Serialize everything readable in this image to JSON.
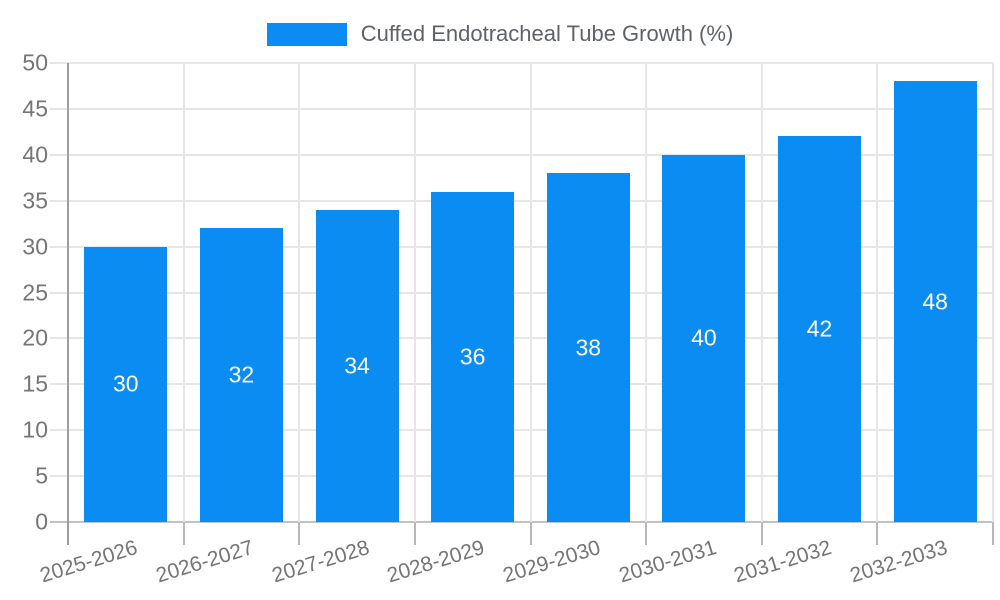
{
  "colors": {
    "background": "#ffffff",
    "bar": "#0a8cf2",
    "bar_label": "#ffffff",
    "grid": "#e6e6e6",
    "grid_zero": "#c2c2c2",
    "axis": "#9e9e9e",
    "tick": "#b8b8b8",
    "axis_label": "#757575",
    "legend_text": "#5f6368"
  },
  "legend": {
    "label": "Cuffed Endotracheal Tube Growth (%)",
    "position": "top-center",
    "swatch_color": "#0a8cf2"
  },
  "chart_data": {
    "type": "bar",
    "title": "Cuffed Endotracheal Tube Growth (%)",
    "xlabel": "",
    "ylabel": "",
    "categories": [
      "2025-2026",
      "2026-2027",
      "2027-2028",
      "2028-2029",
      "2029-2030",
      "2030-2031",
      "2031-2032",
      "2032-2033"
    ],
    "values": [
      30,
      32,
      34,
      36,
      38,
      40,
      42,
      48
    ],
    "bar_value_labels": [
      "30",
      "32",
      "34",
      "36",
      "38",
      "40",
      "42",
      "48"
    ],
    "ylim": [
      0,
      50
    ],
    "ytick_step": 5,
    "yticks": [
      0,
      5,
      10,
      15,
      20,
      25,
      30,
      35,
      40,
      45,
      50
    ],
    "grid": true,
    "vertical_gridlines": true,
    "legend_position": "top",
    "bar_labels_inside": true,
    "x_label_rotation_deg": -17
  }
}
